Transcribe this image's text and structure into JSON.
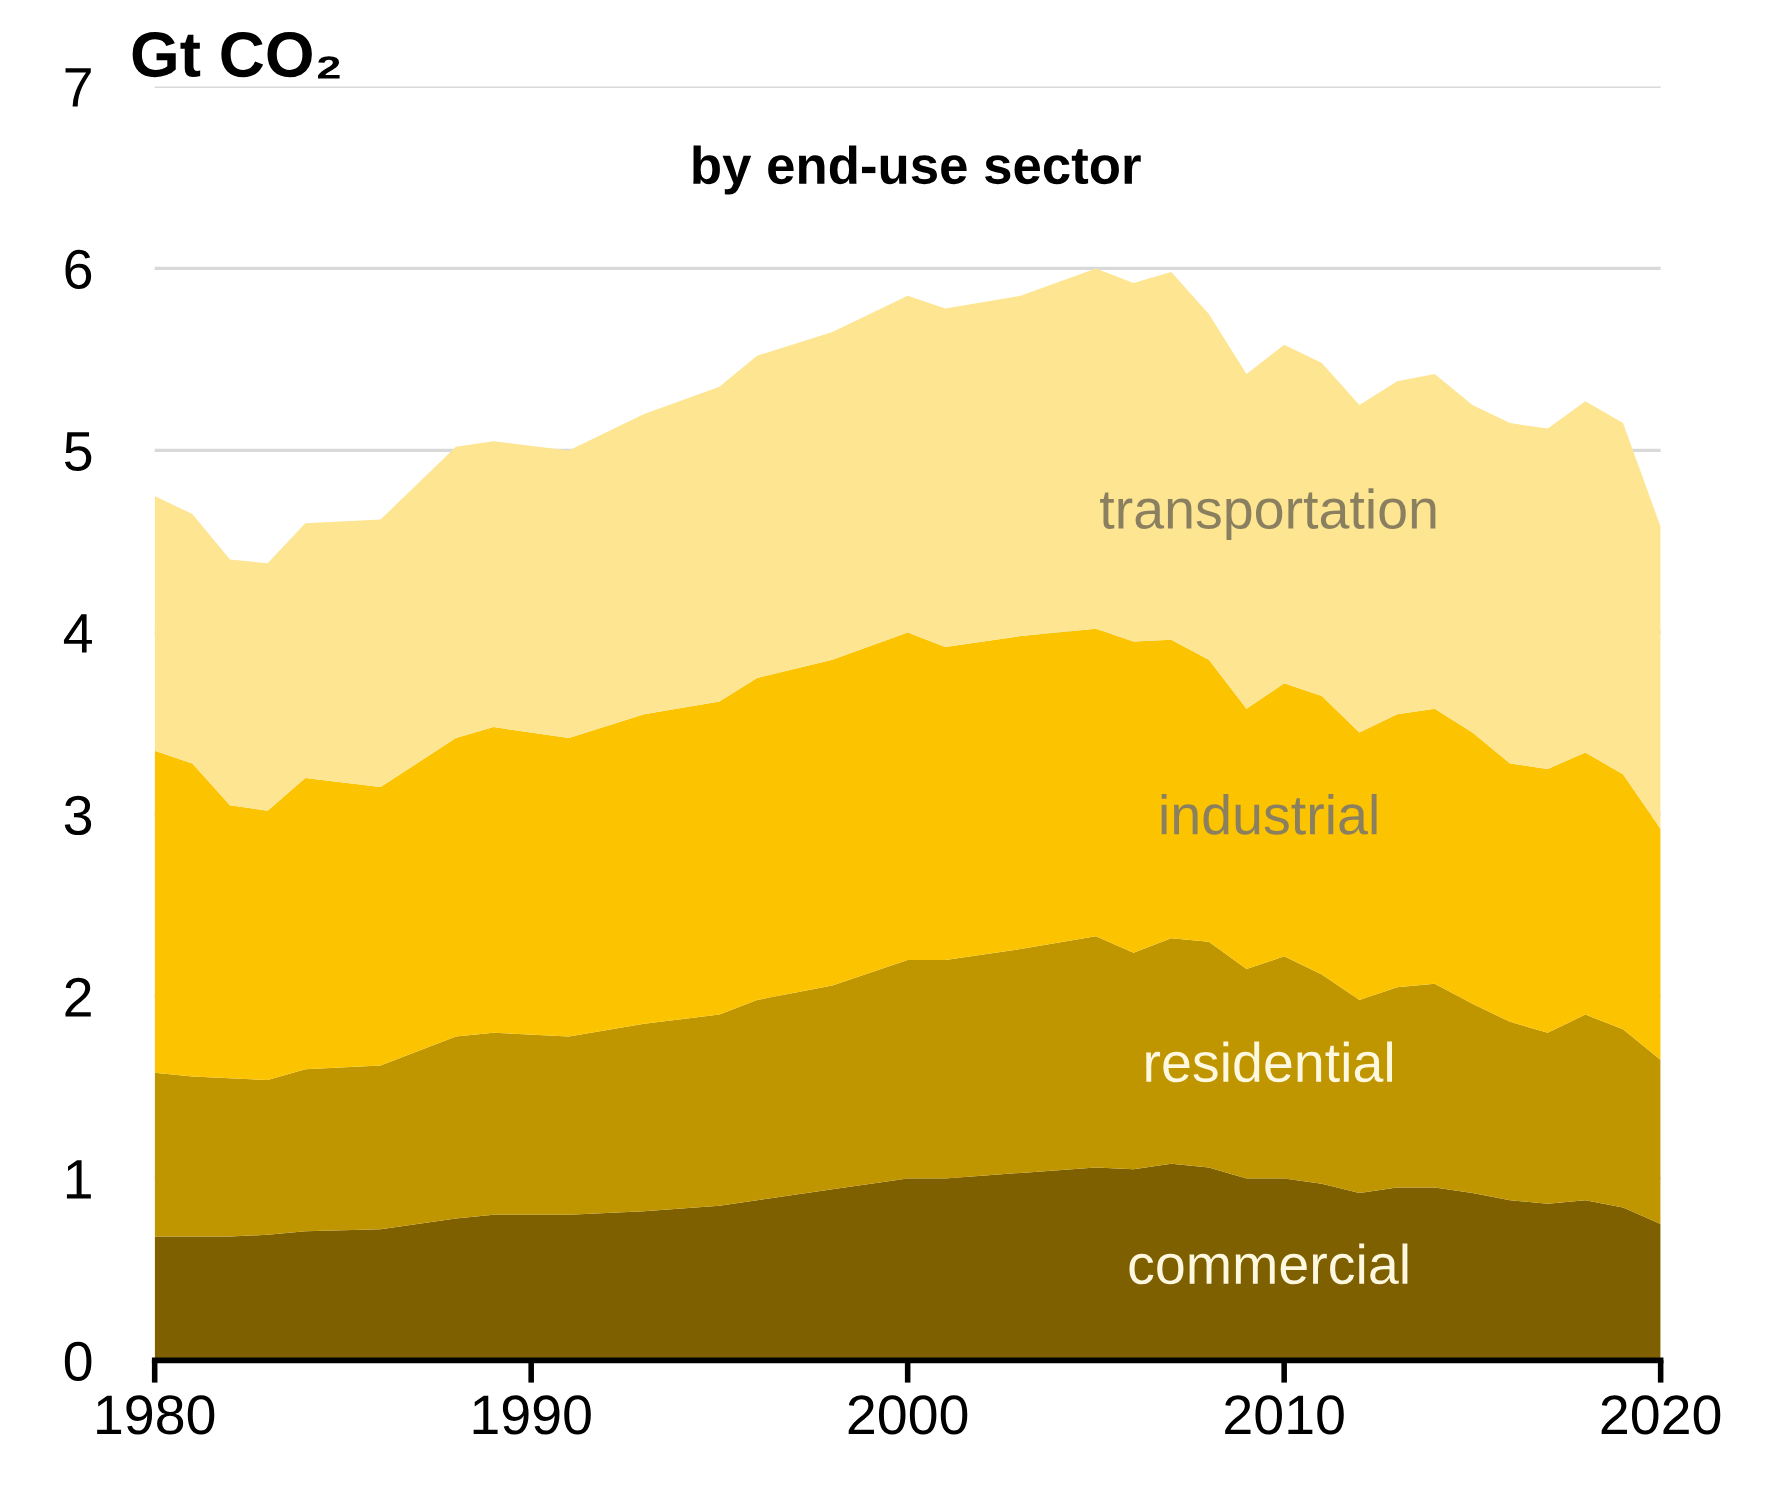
{
  "chart_data": {
    "type": "area",
    "stacked": true,
    "title": "Gt CO₂",
    "subtitle": "by end-use sector",
    "x": [
      1980,
      1981,
      1982,
      1983,
      1984,
      1986,
      1988,
      1989,
      1991,
      1993,
      1995,
      1996,
      1998,
      2000,
      2001,
      2003,
      2005,
      2006,
      2007,
      2008,
      2009,
      2010,
      2011,
      2012,
      2013,
      2014,
      2015,
      2016,
      2017,
      2018,
      2019,
      2020
    ],
    "series": [
      {
        "name": "commercial",
        "color": "#7f6000",
        "values": [
          0.68,
          0.68,
          0.68,
          0.69,
          0.71,
          0.72,
          0.78,
          0.8,
          0.8,
          0.82,
          0.85,
          0.88,
          0.94,
          1.0,
          1.0,
          1.03,
          1.06,
          1.05,
          1.08,
          1.06,
          1.0,
          1.0,
          0.97,
          0.92,
          0.95,
          0.95,
          0.92,
          0.88,
          0.86,
          0.88,
          0.84,
          0.75
        ]
      },
      {
        "name": "residential",
        "color": "#c09600",
        "values": [
          0.9,
          0.88,
          0.87,
          0.85,
          0.89,
          0.9,
          1.0,
          1.0,
          0.98,
          1.03,
          1.05,
          1.1,
          1.12,
          1.2,
          1.2,
          1.23,
          1.27,
          1.19,
          1.24,
          1.24,
          1.15,
          1.22,
          1.15,
          1.06,
          1.1,
          1.12,
          1.04,
          0.98,
          0.94,
          1.02,
          0.98,
          0.9
        ]
      },
      {
        "name": "industrial",
        "color": "#fcc400",
        "values": [
          1.77,
          1.72,
          1.5,
          1.48,
          1.6,
          1.53,
          1.64,
          1.68,
          1.64,
          1.7,
          1.72,
          1.77,
          1.79,
          1.8,
          1.72,
          1.72,
          1.69,
          1.71,
          1.64,
          1.55,
          1.43,
          1.5,
          1.53,
          1.47,
          1.5,
          1.51,
          1.49,
          1.42,
          1.45,
          1.44,
          1.4,
          1.27
        ]
      },
      {
        "name": "transportation",
        "color": "#fde592",
        "values": [
          1.4,
          1.37,
          1.35,
          1.36,
          1.4,
          1.47,
          1.6,
          1.57,
          1.58,
          1.65,
          1.73,
          1.77,
          1.8,
          1.85,
          1.86,
          1.87,
          1.98,
          1.97,
          2.02,
          1.9,
          1.84,
          1.86,
          1.83,
          1.8,
          1.83,
          1.84,
          1.8,
          1.87,
          1.87,
          1.93,
          1.93,
          1.66
        ]
      }
    ],
    "xlim": [
      1980,
      2020
    ],
    "xticks": [
      1980,
      1990,
      2000,
      2010,
      2020
    ],
    "ylim": [
      0,
      7
    ],
    "yticks": [
      0,
      1,
      2,
      3,
      4,
      5,
      6,
      7
    ],
    "grid": "y",
    "legend": false
  }
}
